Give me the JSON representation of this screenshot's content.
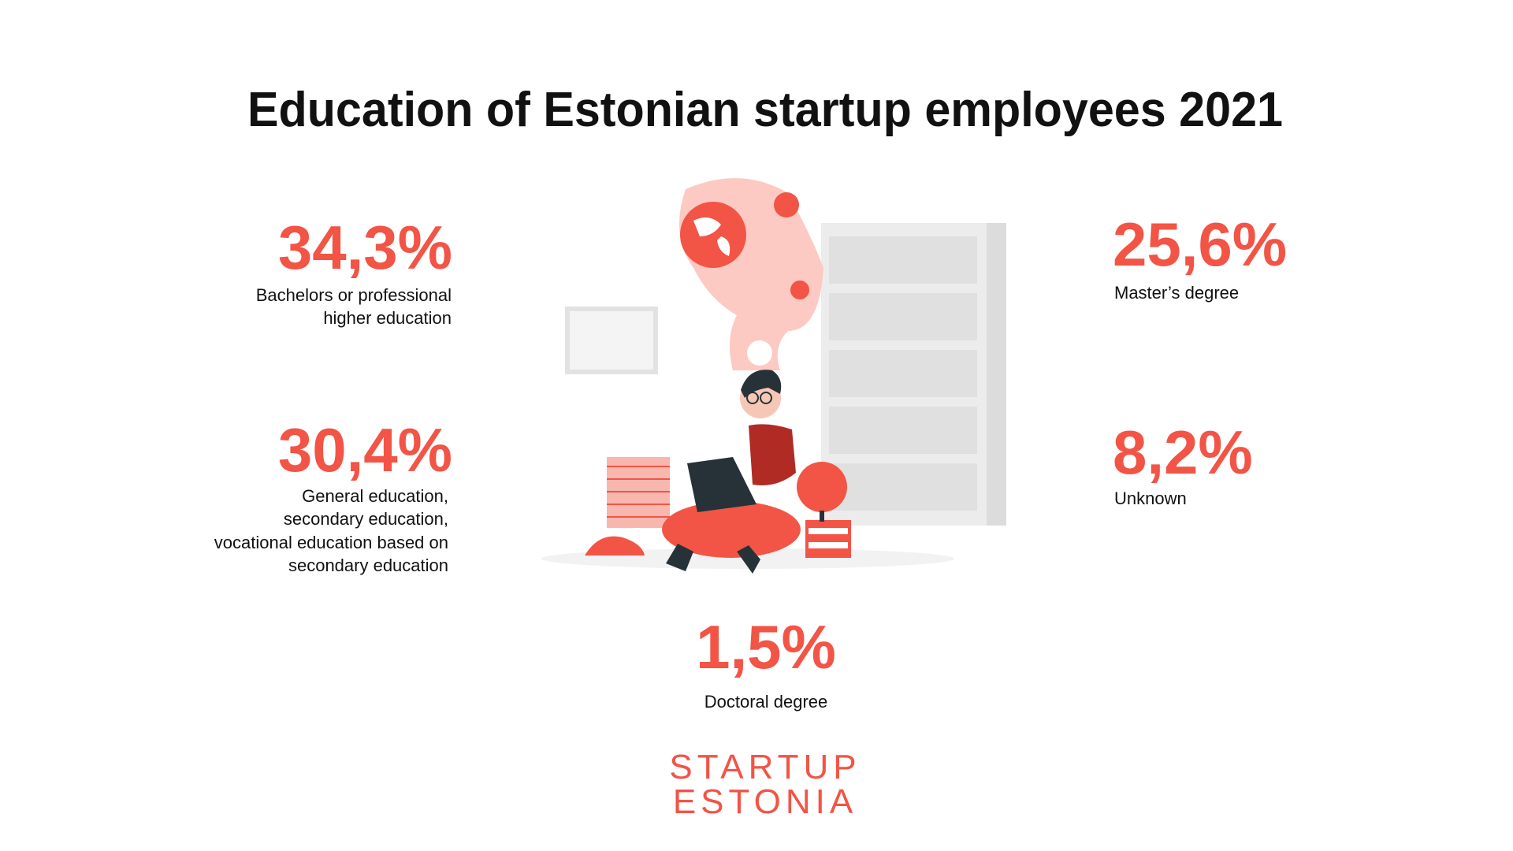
{
  "header": {
    "title": "Education of Estonian startup employees 2021"
  },
  "stats": [
    {
      "value": "34,3%",
      "label": [
        "Bachelors or professional",
        "higher education"
      ]
    },
    {
      "value": "30,4%",
      "label": [
        "General education,",
        "secondary education,",
        "vocational education based on",
        "secondary education"
      ]
    },
    {
      "value": "25,6%",
      "label": [
        "Master’s degree"
      ]
    },
    {
      "value": "8,2%",
      "label": [
        "Unknown"
      ]
    },
    {
      "value": "1,5%",
      "label": [
        "Doctoral degree"
      ]
    }
  ],
  "brand": [
    "STARTUP",
    "ESTONIA"
  ]
}
